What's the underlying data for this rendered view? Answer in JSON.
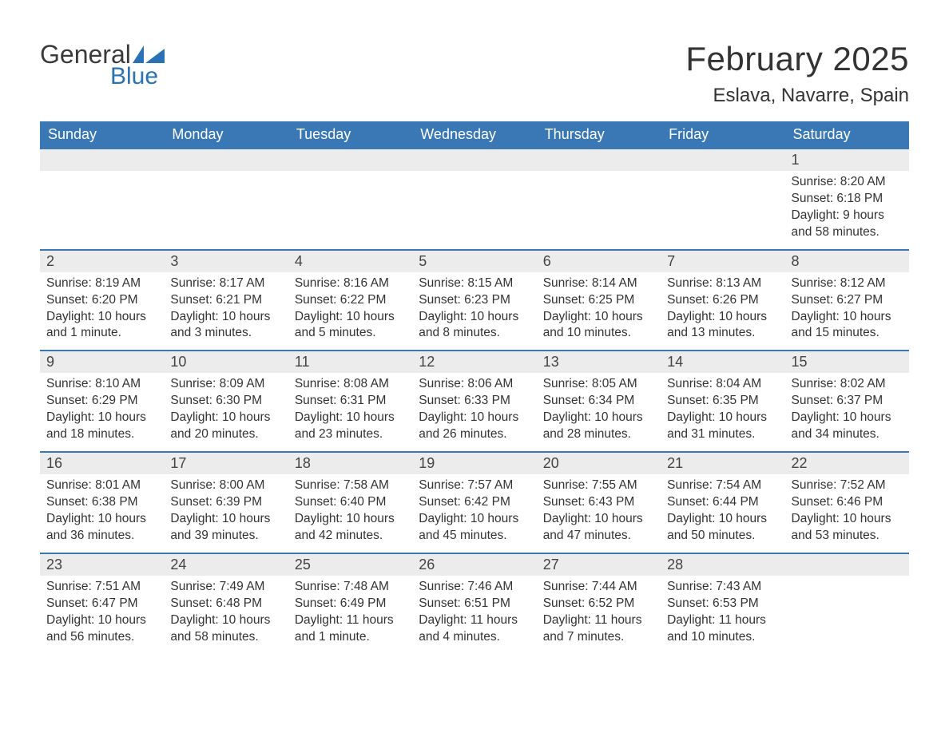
{
  "brand": {
    "general": "General",
    "blue": "Blue"
  },
  "title": "February 2025",
  "location": "Eslava, Navarre, Spain",
  "colors": {
    "header_bg": "#3a78b5",
    "header_text": "#ffffff",
    "row_border": "#3a78b5",
    "daynum_bg": "#ececec",
    "body_text": "#333333",
    "brand_blue": "#2a72b5"
  },
  "weekdays": [
    "Sunday",
    "Monday",
    "Tuesday",
    "Wednesday",
    "Thursday",
    "Friday",
    "Saturday"
  ],
  "grid": {
    "rows": 5,
    "cols": 7,
    "first_day_col": 6,
    "days_in_month": 28
  },
  "days": {
    "1": {
      "sunrise": "8:20 AM",
      "sunset": "6:18 PM",
      "daylight": "9 hours and 58 minutes."
    },
    "2": {
      "sunrise": "8:19 AM",
      "sunset": "6:20 PM",
      "daylight": "10 hours and 1 minute."
    },
    "3": {
      "sunrise": "8:17 AM",
      "sunset": "6:21 PM",
      "daylight": "10 hours and 3 minutes."
    },
    "4": {
      "sunrise": "8:16 AM",
      "sunset": "6:22 PM",
      "daylight": "10 hours and 5 minutes."
    },
    "5": {
      "sunrise": "8:15 AM",
      "sunset": "6:23 PM",
      "daylight": "10 hours and 8 minutes."
    },
    "6": {
      "sunrise": "8:14 AM",
      "sunset": "6:25 PM",
      "daylight": "10 hours and 10 minutes."
    },
    "7": {
      "sunrise": "8:13 AM",
      "sunset": "6:26 PM",
      "daylight": "10 hours and 13 minutes."
    },
    "8": {
      "sunrise": "8:12 AM",
      "sunset": "6:27 PM",
      "daylight": "10 hours and 15 minutes."
    },
    "9": {
      "sunrise": "8:10 AM",
      "sunset": "6:29 PM",
      "daylight": "10 hours and 18 minutes."
    },
    "10": {
      "sunrise": "8:09 AM",
      "sunset": "6:30 PM",
      "daylight": "10 hours and 20 minutes."
    },
    "11": {
      "sunrise": "8:08 AM",
      "sunset": "6:31 PM",
      "daylight": "10 hours and 23 minutes."
    },
    "12": {
      "sunrise": "8:06 AM",
      "sunset": "6:33 PM",
      "daylight": "10 hours and 26 minutes."
    },
    "13": {
      "sunrise": "8:05 AM",
      "sunset": "6:34 PM",
      "daylight": "10 hours and 28 minutes."
    },
    "14": {
      "sunrise": "8:04 AM",
      "sunset": "6:35 PM",
      "daylight": "10 hours and 31 minutes."
    },
    "15": {
      "sunrise": "8:02 AM",
      "sunset": "6:37 PM",
      "daylight": "10 hours and 34 minutes."
    },
    "16": {
      "sunrise": "8:01 AM",
      "sunset": "6:38 PM",
      "daylight": "10 hours and 36 minutes."
    },
    "17": {
      "sunrise": "8:00 AM",
      "sunset": "6:39 PM",
      "daylight": "10 hours and 39 minutes."
    },
    "18": {
      "sunrise": "7:58 AM",
      "sunset": "6:40 PM",
      "daylight": "10 hours and 42 minutes."
    },
    "19": {
      "sunrise": "7:57 AM",
      "sunset": "6:42 PM",
      "daylight": "10 hours and 45 minutes."
    },
    "20": {
      "sunrise": "7:55 AM",
      "sunset": "6:43 PM",
      "daylight": "10 hours and 47 minutes."
    },
    "21": {
      "sunrise": "7:54 AM",
      "sunset": "6:44 PM",
      "daylight": "10 hours and 50 minutes."
    },
    "22": {
      "sunrise": "7:52 AM",
      "sunset": "6:46 PM",
      "daylight": "10 hours and 53 minutes."
    },
    "23": {
      "sunrise": "7:51 AM",
      "sunset": "6:47 PM",
      "daylight": "10 hours and 56 minutes."
    },
    "24": {
      "sunrise": "7:49 AM",
      "sunset": "6:48 PM",
      "daylight": "10 hours and 58 minutes."
    },
    "25": {
      "sunrise": "7:48 AM",
      "sunset": "6:49 PM",
      "daylight": "11 hours and 1 minute."
    },
    "26": {
      "sunrise": "7:46 AM",
      "sunset": "6:51 PM",
      "daylight": "11 hours and 4 minutes."
    },
    "27": {
      "sunrise": "7:44 AM",
      "sunset": "6:52 PM",
      "daylight": "11 hours and 7 minutes."
    },
    "28": {
      "sunrise": "7:43 AM",
      "sunset": "6:53 PM",
      "daylight": "11 hours and 10 minutes."
    }
  },
  "labels": {
    "sunrise": "Sunrise: ",
    "sunset": "Sunset: ",
    "daylight": "Daylight: "
  }
}
